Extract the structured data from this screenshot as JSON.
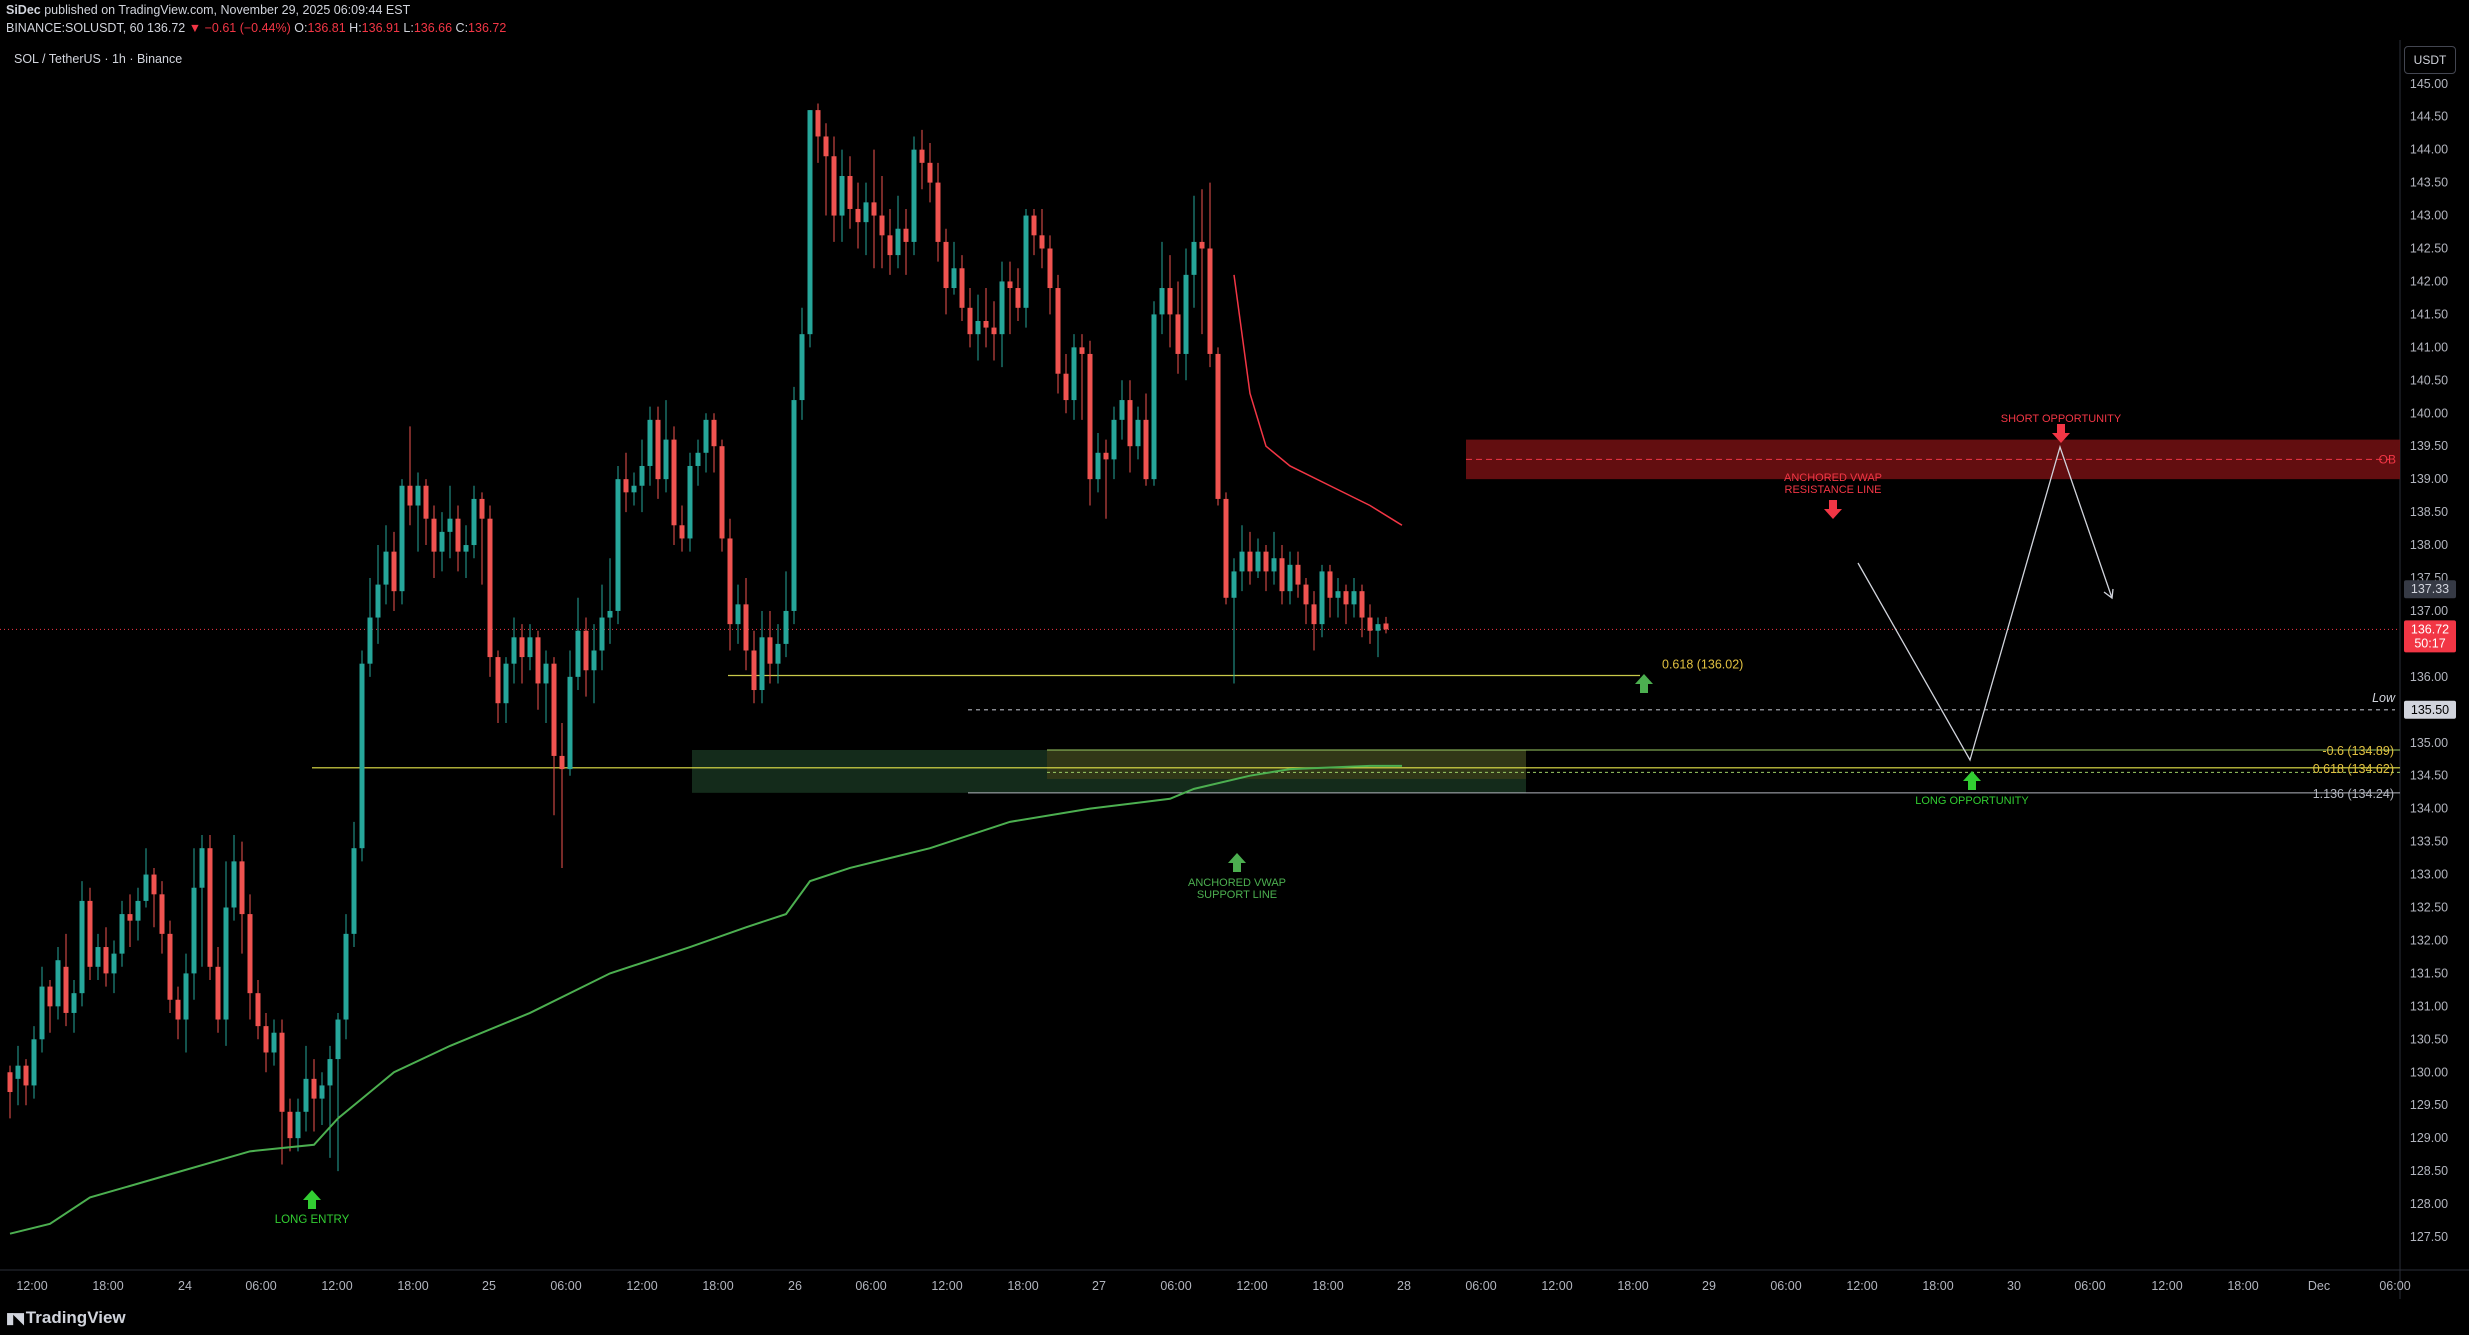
{
  "header": {
    "author": "SiDec",
    "published": "published on TradingView.com, November 29, 2025 06:09:44 EST",
    "symbol_line": "BINANCE:SOLUSDT, 60",
    "last": "136.72",
    "change": "▼ −0.61 (−0.44%)",
    "o_label": "O:",
    "o": "136.81",
    "h_label": "H:",
    "h": "136.91",
    "l_label": "L:",
    "l": "136.66",
    "c_label": "C:",
    "c": "136.72"
  },
  "legend": {
    "symbol": "SOL / TetherUS · 1h · Binance"
  },
  "currency_button": "USDT",
  "footer": {
    "brand": "TradingView"
  },
  "colors": {
    "up": "#26a69a",
    "down": "#ef5350",
    "vwap_support": "#4caf50",
    "vwap_resist": "#f23645",
    "fib": "#c9c94a",
    "zone_green": "#1b3a24",
    "zone_red": "#6e0f12",
    "arrow_green": "#32cd32",
    "arrow_red": "#f23645"
  },
  "chart_data": {
    "type": "candlestick",
    "title": "SOL / TetherUS · 1h · Binance",
    "ylim": [
      127.0,
      145.3
    ],
    "y_ticks": [
      "127.50",
      "128.00",
      "128.50",
      "129.00",
      "129.50",
      "130.00",
      "130.50",
      "131.00",
      "131.50",
      "132.00",
      "132.50",
      "133.00",
      "133.50",
      "134.00",
      "134.50",
      "135.00",
      "135.50",
      "136.00",
      "136.50",
      "137.00",
      "137.50",
      "138.00",
      "138.50",
      "139.00",
      "139.50",
      "140.00",
      "140.50",
      "141.00",
      "141.50",
      "142.00",
      "142.50",
      "143.00",
      "143.50",
      "144.00",
      "144.50",
      "145.00"
    ],
    "x_ticks": [
      "12:00",
      "18:00",
      "24",
      "06:00",
      "12:00",
      "18:00",
      "25",
      "06:00",
      "12:00",
      "18:00",
      "26",
      "06:00",
      "12:00",
      "18:00",
      "27",
      "06:00",
      "12:00",
      "18:00",
      "28",
      "06:00",
      "12:00",
      "18:00",
      "29",
      "06:00",
      "12:00",
      "18:00",
      "30",
      "06:00",
      "12:00",
      "18:00",
      "Dec",
      "06:00"
    ],
    "candles": [
      [
        130.0,
        129.7,
        130.1,
        129.3
      ],
      [
        129.9,
        130.1,
        130.4,
        129.5
      ],
      [
        130.1,
        129.8,
        130.2,
        129.5
      ],
      [
        129.8,
        130.5,
        130.7,
        129.6
      ],
      [
        130.5,
        131.3,
        131.6,
        130.3
      ],
      [
        131.3,
        131.0,
        131.4,
        130.6
      ],
      [
        131.0,
        131.7,
        131.9,
        130.8
      ],
      [
        131.6,
        130.9,
        132.1,
        130.7
      ],
      [
        130.9,
        131.2,
        131.4,
        130.6
      ],
      [
        131.2,
        132.6,
        132.9,
        131.0
      ],
      [
        132.6,
        131.6,
        132.8,
        131.4
      ],
      [
        131.6,
        131.9,
        132.1,
        131.4
      ],
      [
        131.9,
        131.5,
        132.2,
        131.3
      ],
      [
        131.5,
        131.8,
        132.0,
        131.2
      ],
      [
        131.8,
        132.4,
        132.6,
        131.6
      ],
      [
        132.4,
        132.3,
        132.7,
        131.9
      ],
      [
        132.3,
        132.6,
        132.8,
        132.0
      ],
      [
        132.6,
        133.0,
        133.4,
        132.5
      ],
      [
        133.0,
        132.7,
        133.1,
        132.2
      ],
      [
        132.7,
        132.1,
        132.9,
        131.8
      ],
      [
        132.1,
        131.1,
        132.3,
        130.9
      ],
      [
        131.1,
        130.8,
        131.3,
        130.5
      ],
      [
        130.8,
        131.5,
        131.8,
        130.3
      ],
      [
        131.5,
        132.8,
        133.4,
        131.1
      ],
      [
        132.8,
        133.4,
        133.6,
        131.6
      ],
      [
        133.4,
        131.6,
        133.6,
        131.4
      ],
      [
        131.6,
        130.8,
        131.9,
        130.6
      ],
      [
        130.8,
        132.5,
        133.2,
        130.4
      ],
      [
        132.5,
        133.2,
        133.6,
        132.3
      ],
      [
        133.2,
        132.4,
        133.5,
        131.8
      ],
      [
        132.4,
        131.2,
        132.7,
        130.8
      ],
      [
        131.2,
        130.7,
        131.4,
        130.5
      ],
      [
        130.7,
        130.3,
        130.9,
        130.0
      ],
      [
        130.3,
        130.6,
        130.8,
        130.1
      ],
      [
        130.6,
        129.4,
        130.8,
        128.6
      ],
      [
        129.4,
        129.0,
        129.6,
        128.8
      ],
      [
        129.0,
        129.4,
        129.6,
        128.8
      ],
      [
        129.4,
        129.9,
        130.4,
        129.1
      ],
      [
        129.9,
        129.6,
        130.2,
        129.1
      ],
      [
        129.6,
        129.8,
        130.0,
        129.2
      ],
      [
        129.8,
        130.2,
        130.4,
        128.7
      ],
      [
        130.2,
        130.8,
        130.9,
        128.5
      ],
      [
        130.8,
        132.1,
        132.4,
        130.5
      ],
      [
        132.1,
        133.4,
        133.8,
        131.9
      ],
      [
        133.4,
        136.2,
        136.4,
        133.2
      ],
      [
        136.2,
        136.9,
        137.5,
        136.0
      ],
      [
        136.9,
        137.4,
        138.0,
        136.5
      ],
      [
        137.4,
        137.9,
        138.3,
        137.1
      ],
      [
        137.9,
        137.3,
        138.2,
        137.0
      ],
      [
        137.3,
        138.9,
        139.0,
        137.1
      ],
      [
        138.9,
        138.6,
        139.8,
        138.3
      ],
      [
        138.6,
        138.9,
        139.1,
        137.9
      ],
      [
        138.9,
        138.4,
        139.0,
        138.0
      ],
      [
        138.4,
        137.9,
        138.6,
        137.5
      ],
      [
        137.9,
        138.2,
        138.5,
        137.6
      ],
      [
        138.2,
        138.4,
        138.9,
        137.8
      ],
      [
        138.4,
        137.9,
        138.6,
        137.6
      ],
      [
        137.9,
        138.0,
        138.3,
        137.5
      ],
      [
        138.0,
        138.7,
        138.9,
        137.8
      ],
      [
        138.7,
        138.4,
        138.8,
        137.4
      ],
      [
        138.4,
        136.3,
        138.6,
        136.0
      ],
      [
        136.3,
        135.6,
        136.4,
        135.3
      ],
      [
        135.6,
        136.2,
        136.3,
        135.3
      ],
      [
        136.2,
        136.6,
        136.9,
        135.9
      ],
      [
        136.6,
        136.3,
        136.8,
        135.9
      ],
      [
        136.3,
        136.6,
        136.8,
        136.1
      ],
      [
        136.6,
        135.9,
        136.7,
        135.5
      ],
      [
        135.9,
        136.2,
        136.4,
        135.3
      ],
      [
        136.2,
        134.8,
        136.3,
        133.9
      ],
      [
        134.8,
        134.6,
        135.3,
        133.1
      ],
      [
        134.6,
        136.0,
        136.4,
        134.5
      ],
      [
        136.0,
        136.7,
        137.2,
        135.8
      ],
      [
        136.7,
        136.1,
        136.9,
        135.7
      ],
      [
        136.1,
        136.4,
        136.8,
        135.6
      ],
      [
        136.4,
        136.9,
        137.4,
        136.1
      ],
      [
        136.9,
        137.0,
        137.8,
        136.5
      ],
      [
        137.0,
        139.0,
        139.2,
        136.8
      ],
      [
        139.0,
        138.8,
        139.4,
        138.5
      ],
      [
        138.8,
        138.9,
        139.1,
        138.6
      ],
      [
        138.9,
        139.2,
        139.6,
        138.5
      ],
      [
        139.2,
        139.9,
        140.1,
        138.9
      ],
      [
        139.9,
        139.0,
        140.1,
        138.7
      ],
      [
        139.0,
        139.6,
        140.2,
        138.8
      ],
      [
        139.6,
        138.3,
        139.8,
        138.0
      ],
      [
        138.3,
        138.1,
        138.6,
        137.9
      ],
      [
        138.1,
        139.2,
        139.4,
        137.9
      ],
      [
        139.2,
        139.4,
        139.6,
        138.9
      ],
      [
        139.4,
        139.9,
        140.0,
        139.1
      ],
      [
        139.9,
        139.5,
        140.0,
        139.1
      ],
      [
        139.5,
        138.1,
        139.6,
        137.9
      ],
      [
        138.1,
        136.8,
        138.4,
        136.4
      ],
      [
        136.8,
        137.1,
        137.4,
        136.5
      ],
      [
        137.1,
        136.4,
        137.5,
        136.1
      ],
      [
        136.4,
        135.8,
        136.7,
        135.6
      ],
      [
        135.8,
        136.6,
        137.0,
        135.6
      ],
      [
        136.6,
        136.2,
        137.0,
        135.9
      ],
      [
        136.2,
        136.5,
        136.8,
        135.9
      ],
      [
        136.5,
        137.0,
        137.6,
        136.3
      ],
      [
        137.0,
        140.2,
        140.4,
        136.8
      ],
      [
        140.2,
        141.2,
        141.6,
        139.9
      ],
      [
        141.2,
        144.6,
        144.6,
        141.0
      ],
      [
        144.6,
        144.2,
        144.7,
        143.8
      ],
      [
        144.2,
        143.9,
        144.4,
        143.0
      ],
      [
        143.9,
        143.0,
        144.2,
        142.6
      ],
      [
        143.0,
        143.6,
        144.0,
        142.6
      ],
      [
        143.6,
        143.1,
        143.9,
        142.8
      ],
      [
        143.1,
        142.9,
        143.5,
        142.5
      ],
      [
        142.9,
        143.2,
        143.5,
        142.4
      ],
      [
        143.2,
        143.0,
        144.0,
        142.2
      ],
      [
        143.0,
        142.7,
        143.6,
        142.2
      ],
      [
        142.7,
        142.4,
        143.1,
        142.1
      ],
      [
        142.4,
        142.8,
        143.3,
        142.2
      ],
      [
        142.8,
        142.6,
        143.1,
        142.1
      ],
      [
        142.6,
        144.0,
        144.2,
        142.4
      ],
      [
        144.0,
        143.8,
        144.3,
        143.4
      ],
      [
        143.8,
        143.5,
        144.1,
        143.2
      ],
      [
        143.5,
        142.6,
        143.8,
        142.3
      ],
      [
        142.6,
        141.9,
        142.8,
        141.5
      ],
      [
        141.9,
        142.2,
        142.6,
        141.8
      ],
      [
        142.2,
        141.6,
        142.4,
        141.4
      ],
      [
        141.6,
        141.2,
        141.9,
        141.0
      ],
      [
        141.2,
        141.4,
        141.8,
        140.8
      ],
      [
        141.4,
        141.3,
        141.9,
        141.0
      ],
      [
        141.3,
        141.2,
        141.7,
        140.8
      ],
      [
        141.2,
        142.0,
        142.3,
        140.7
      ],
      [
        142.0,
        141.9,
        142.3,
        141.2
      ],
      [
        141.9,
        141.6,
        142.2,
        141.4
      ],
      [
        141.6,
        143.0,
        143.1,
        141.3
      ],
      [
        143.0,
        142.7,
        143.1,
        142.4
      ],
      [
        142.7,
        142.5,
        143.1,
        142.2
      ],
      [
        142.5,
        141.9,
        142.7,
        141.5
      ],
      [
        141.9,
        140.6,
        142.1,
        140.3
      ],
      [
        140.6,
        140.2,
        140.9,
        140.0
      ],
      [
        140.2,
        141.0,
        141.2,
        139.9
      ],
      [
        141.0,
        140.9,
        141.2,
        139.9
      ],
      [
        140.9,
        139.0,
        141.1,
        138.6
      ],
      [
        139.0,
        139.4,
        139.7,
        138.8
      ],
      [
        139.4,
        139.3,
        139.6,
        138.4
      ],
      [
        139.3,
        139.9,
        140.1,
        139.0
      ],
      [
        139.9,
        140.2,
        140.5,
        139.6
      ],
      [
        140.2,
        139.5,
        140.5,
        139.1
      ],
      [
        139.5,
        139.9,
        140.1,
        139.3
      ],
      [
        139.9,
        139.0,
        140.3,
        138.9
      ],
      [
        139.0,
        141.5,
        141.7,
        138.9
      ],
      [
        141.5,
        141.9,
        142.6,
        141.2
      ],
      [
        141.9,
        141.5,
        142.4,
        141.0
      ],
      [
        141.5,
        140.9,
        142.0,
        140.6
      ],
      [
        140.9,
        142.1,
        142.5,
        140.5
      ],
      [
        142.1,
        142.6,
        143.3,
        141.6
      ],
      [
        142.6,
        142.5,
        143.4,
        141.2
      ],
      [
        142.5,
        140.9,
        143.5,
        140.7
      ],
      [
        140.9,
        138.7,
        141.0,
        138.6
      ],
      [
        138.7,
        137.2,
        138.8,
        137.1
      ],
      [
        137.2,
        137.6,
        137.8,
        135.9
      ],
      [
        137.6,
        137.9,
        138.3,
        137.3
      ],
      [
        137.9,
        137.6,
        138.2,
        137.4
      ],
      [
        137.6,
        137.9,
        138.1,
        137.5
      ],
      [
        137.9,
        137.6,
        138.0,
        137.3
      ],
      [
        137.6,
        137.8,
        138.2,
        137.4
      ],
      [
        137.8,
        137.3,
        138.0,
        137.1
      ],
      [
        137.3,
        137.7,
        137.9,
        137.1
      ],
      [
        137.7,
        137.4,
        137.9,
        137.2
      ],
      [
        137.4,
        137.1,
        137.5,
        136.8
      ],
      [
        137.1,
        136.8,
        137.3,
        136.4
      ],
      [
        136.8,
        137.6,
        137.7,
        136.6
      ],
      [
        137.6,
        137.2,
        137.7,
        136.9
      ],
      [
        137.2,
        137.3,
        137.5,
        136.9
      ],
      [
        137.3,
        137.1,
        137.4,
        136.8
      ],
      [
        137.1,
        137.3,
        137.5,
        136.9
      ],
      [
        137.3,
        136.9,
        137.4,
        136.6
      ],
      [
        136.9,
        136.7,
        137.1,
        136.5
      ],
      [
        136.7,
        136.8,
        136.9,
        136.3
      ],
      [
        136.81,
        136.72,
        136.91,
        136.66
      ]
    ],
    "vwap_support": [
      [
        0,
        127.55
      ],
      [
        5,
        127.7
      ],
      [
        10,
        128.1
      ],
      [
        20,
        128.45
      ],
      [
        30,
        128.8
      ],
      [
        34,
        128.85
      ],
      [
        38,
        128.9
      ],
      [
        41,
        129.3
      ],
      [
        44,
        129.6
      ],
      [
        48,
        130.0
      ],
      [
        55,
        130.4
      ],
      [
        65,
        130.9
      ],
      [
        75,
        131.5
      ],
      [
        85,
        131.9
      ],
      [
        92,
        132.2
      ],
      [
        97,
        132.4
      ],
      [
        100,
        132.9
      ],
      [
        105,
        133.1
      ],
      [
        115,
        133.4
      ],
      [
        125,
        133.8
      ],
      [
        135,
        134.0
      ],
      [
        145,
        134.15
      ],
      [
        148,
        134.3
      ],
      [
        155,
        134.5
      ],
      [
        160,
        134.6
      ],
      [
        170,
        134.65
      ],
      [
        174,
        134.65
      ]
    ],
    "vwap_resist": [
      [
        153,
        142.1
      ],
      [
        155,
        140.3
      ],
      [
        157,
        139.5
      ],
      [
        160,
        139.2
      ],
      [
        165,
        138.9
      ],
      [
        170,
        138.6
      ],
      [
        174,
        138.3
      ]
    ],
    "levels": [
      {
        "label": "0.618 (136.02)",
        "price": 136.02
      },
      {
        "label": "Low",
        "price": 135.5
      },
      {
        "label": "-0.6 (134.89)",
        "price": 134.89
      },
      {
        "label": "0.618 (134.62)",
        "price": 134.62
      },
      {
        "label": "1.136 (134.24)",
        "price": 134.24
      }
    ],
    "order_block": {
      "label": "OB",
      "top": 139.6,
      "bottom": 139.0,
      "mid": 139.3
    },
    "annotations": [
      {
        "label": "LONG ENTRY"
      },
      {
        "label_line1": "ANCHORED VWAP",
        "label_line2": "SUPPORT LINE"
      },
      {
        "label_line1": "ANCHORED VWAP",
        "label_line2": "RESISTANCE LINE"
      },
      {
        "label": "SHORT OPPORTUNITY"
      },
      {
        "label": "LONG OPPORTUNITY"
      }
    ],
    "price_tags": [
      {
        "text": "137.33",
        "value": 137.33
      },
      {
        "text": "136.72",
        "value": 136.72
      },
      {
        "text": "50:17"
      },
      {
        "text": "135.50",
        "value": 135.5
      }
    ]
  }
}
